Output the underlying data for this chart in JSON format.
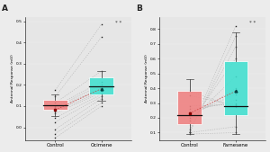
{
  "panel_A": {
    "label": "A",
    "xlabel_control": "Control",
    "xlabel_treatment": "Ocimene",
    "ylabel": "Antennal Response (mV)",
    "annotation": "* *",
    "ylim": [
      -0.06,
      0.52
    ],
    "yticks": [
      0.0,
      0.1,
      0.2,
      0.3,
      0.4,
      0.5
    ],
    "ytick_labels": [
      "0.0",
      "0.1",
      "0.2",
      "0.3",
      "0.4",
      "0.5"
    ],
    "control_box": {
      "median": 0.105,
      "q1": 0.085,
      "q3": 0.13,
      "whisker_low": 0.055,
      "whisker_high": 0.155
    },
    "treatment_box": {
      "median": 0.195,
      "q1": 0.155,
      "q3": 0.235,
      "whisker_low": 0.125,
      "whisker_high": 0.265
    },
    "paired_lines": [
      [
        0.175,
        0.485
      ],
      [
        0.145,
        0.425
      ],
      [
        0.115,
        0.265
      ],
      [
        0.1,
        0.215
      ],
      [
        0.095,
        0.2
      ],
      [
        0.09,
        0.185
      ],
      [
        0.085,
        0.18
      ],
      [
        0.075,
        0.17
      ],
      [
        0.065,
        0.165
      ],
      [
        0.045,
        0.155
      ],
      [
        0.025,
        0.145
      ],
      [
        -0.01,
        0.135
      ],
      [
        -0.03,
        0.115
      ],
      [
        -0.05,
        0.1
      ]
    ],
    "mean_control": 0.082,
    "mean_treatment": 0.182,
    "mean_line_color": "#cc3333"
  },
  "panel_B": {
    "label": "B",
    "xlabel_control": "Control",
    "xlabel_treatment": "Farnesene",
    "ylabel": "Antennal Response (mV)",
    "annotation": "* *",
    "ylim": [
      0.05,
      0.88
    ],
    "yticks": [
      0.1,
      0.2,
      0.3,
      0.4,
      0.5,
      0.6,
      0.7,
      0.8
    ],
    "ytick_labels": [
      "0.1",
      "0.2",
      "0.3",
      "0.4",
      "0.5",
      "0.6",
      "0.7",
      "0.8"
    ],
    "control_box": {
      "median": 0.22,
      "q1": 0.16,
      "q3": 0.38,
      "whisker_low": 0.09,
      "whisker_high": 0.46
    },
    "treatment_box": {
      "median": 0.28,
      "q1": 0.22,
      "q3": 0.58,
      "whisker_low": 0.09,
      "whisker_high": 0.78
    },
    "paired_lines": [
      [
        0.1,
        0.82
      ],
      [
        0.1,
        0.75
      ],
      [
        0.12,
        0.68
      ],
      [
        0.16,
        0.6
      ],
      [
        0.18,
        0.48
      ],
      [
        0.2,
        0.4
      ],
      [
        0.22,
        0.36
      ],
      [
        0.24,
        0.32
      ],
      [
        0.26,
        0.3
      ],
      [
        0.28,
        0.29
      ],
      [
        0.35,
        0.285
      ],
      [
        0.38,
        0.27
      ],
      [
        0.1,
        0.14
      ],
      [
        0.09,
        0.1
      ]
    ],
    "mean_control": 0.23,
    "mean_treatment": 0.38,
    "mean_line_color": "#cc3333"
  },
  "color_control": "#f08080",
  "color_treatment": "#40e0d0",
  "color_median": "#111111",
  "color_mean_ctrl": "#8B0000",
  "color_mean_trt": "#004444",
  "bg_color": "#e6e6e6",
  "fig_bg_color": "#ececec",
  "whisker_color": "#444444",
  "dot_color": "#222222",
  "line_color_gray": "#aaaaaa"
}
